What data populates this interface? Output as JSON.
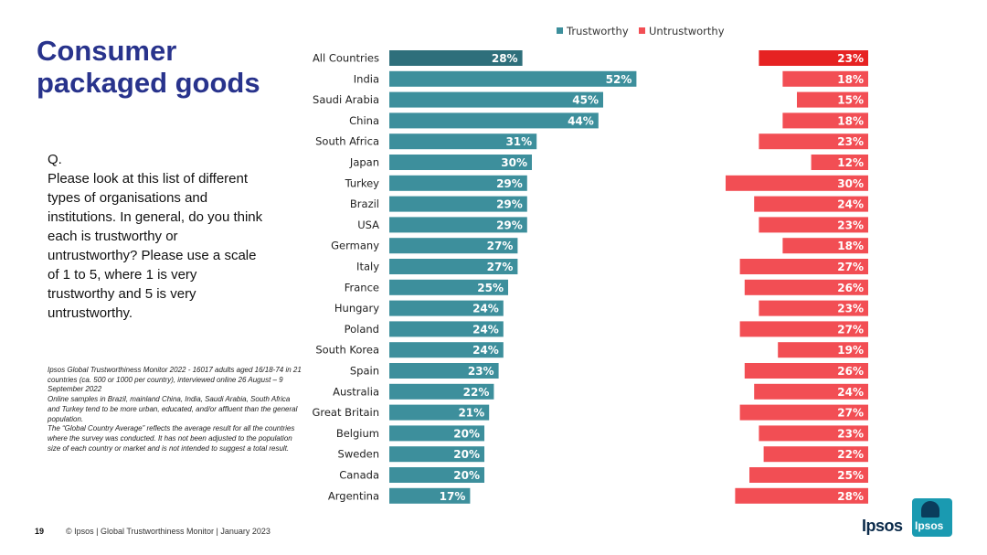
{
  "slide": {
    "title": "Consumer packaged goods",
    "question_label": "Q.",
    "question_text": "Please look at this list of different types of organisations and institutions. In general, do you think each is trustworthy or untrustworthy? Please use a scale of 1 to 5, where 1 is very trustworthy and 5 is very untrustworthy.",
    "note_1": "Ipsos Global Trustworthiness Monitor 2022 - 16017 adults aged 16/18-74 in 21 countries (ca. 500 or 1000 per country), interviewed online 26 August – 9 September 2022",
    "note_2": "Online samples in Brazil, mainland China, India, Saudi Arabia, South Africa and Turkey tend to be more urban, educated, and/or affluent than the general population.",
    "note_3": "The “Global Country Average” reflects the average result for all the countries where the survey was conducted. It has not been adjusted to the population size of each country or market and is not intended to suggest a total result.",
    "page_number": "19",
    "footer": "© Ipsos | Global Trustworthiness Monitor | January 2023",
    "brand": "Ipsos",
    "logo_text": "Ipsos"
  },
  "colors": {
    "title": "#28338c",
    "trust": "#3d8f9c",
    "trust_highlight": "#2e6f7b",
    "untrust": "#f24e54",
    "untrust_highlight": "#e62222"
  },
  "chart_data": {
    "type": "bar",
    "orientation": "horizontal",
    "legend_position": "top",
    "categories": [
      "All Countries",
      "India",
      "Saudi Arabia",
      "China",
      "South Africa",
      "Japan",
      "Turkey",
      "Brazil",
      "USA",
      "Germany",
      "Italy",
      "France",
      "Hungary",
      "Poland",
      "South Korea",
      "Spain",
      "Australia",
      "Great Britain",
      "Belgium",
      "Sweden",
      "Canada",
      "Argentina"
    ],
    "series": [
      {
        "name": "Trustworthy",
        "values": [
          28,
          52,
          45,
          44,
          31,
          30,
          29,
          29,
          29,
          27,
          27,
          25,
          24,
          24,
          24,
          23,
          22,
          21,
          20,
          20,
          20,
          17
        ]
      },
      {
        "name": "Untrustworthy",
        "values": [
          23,
          18,
          15,
          18,
          23,
          12,
          30,
          24,
          23,
          18,
          27,
          26,
          23,
          27,
          19,
          26,
          24,
          27,
          23,
          22,
          25,
          28
        ]
      }
    ],
    "value_suffix": "%",
    "highlight_category": "All Countries"
  }
}
